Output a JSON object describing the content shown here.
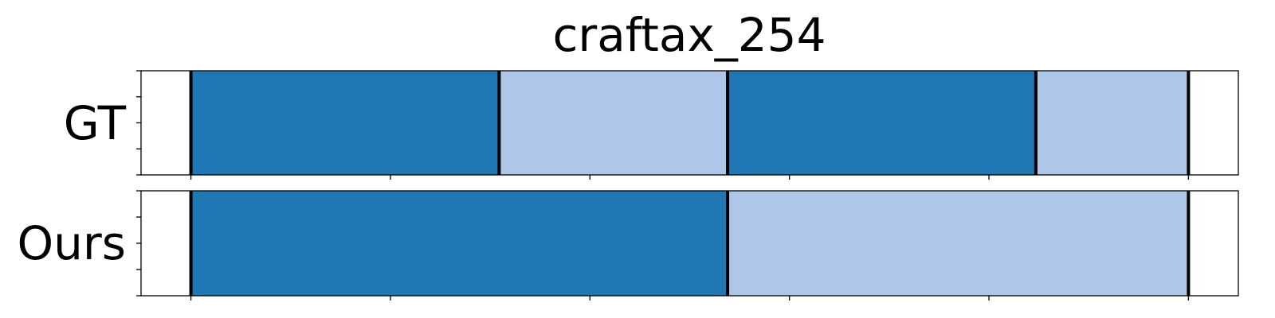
{
  "chart_data": {
    "type": "bar",
    "title": "craftax_254",
    "xlabel": "",
    "ylabel": "",
    "xlim": [
      -0.25,
      5.25
    ],
    "xticks": [
      0,
      1,
      2,
      3,
      4,
      5
    ],
    "legend": "none",
    "grid": false,
    "colors": {
      "dark": "#1f77b4",
      "light": "#aec7e8",
      "boundary": "#000000",
      "frame": "#000000"
    },
    "rows": [
      {
        "label": "GT",
        "segments": [
          {
            "start": 0.0,
            "end": 1.545,
            "color": "dark"
          },
          {
            "start": 1.545,
            "end": 2.69,
            "color": "light"
          },
          {
            "start": 2.69,
            "end": 4.235,
            "color": "dark"
          },
          {
            "start": 4.235,
            "end": 5.0,
            "color": "light"
          }
        ],
        "boundaries": [
          0.0,
          1.545,
          2.69,
          4.235,
          5.0
        ]
      },
      {
        "label": "Ours",
        "segments": [
          {
            "start": 0.0,
            "end": 2.69,
            "color": "dark"
          },
          {
            "start": 2.69,
            "end": 5.0,
            "color": "light"
          }
        ],
        "boundaries": [
          0.0,
          2.69,
          5.0
        ]
      }
    ]
  }
}
